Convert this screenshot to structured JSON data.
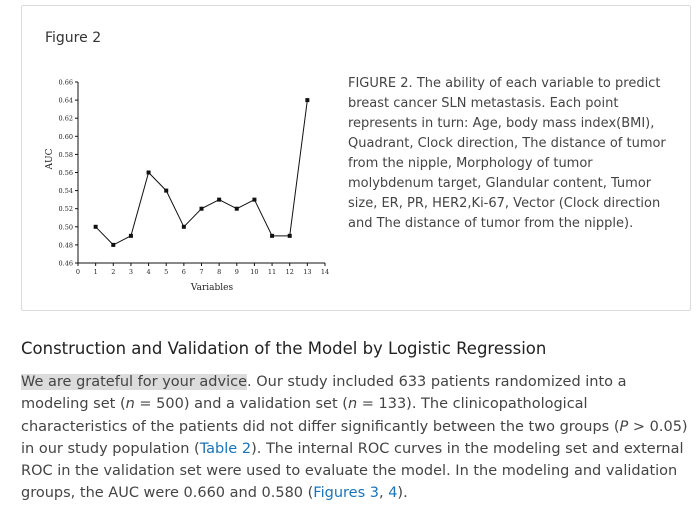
{
  "figure": {
    "label": "Figure 2",
    "caption": "FIGURE 2. The ability of each variable to predict breast cancer SLN metastasis. Each point represents in turn: Age, body mass index(BMI), Quadrant, Clock direction, The distance of tumor from the nipple, Morphology of tumor molybdenum target, Glandular content, Tumor size, ER, PR, HER2,Ki-67, Vector (Clock direction and The distance of tumor from the nipple)."
  },
  "chart_data": {
    "type": "line",
    "xlabel": "Variables",
    "ylabel": "AUC",
    "xlim": [
      0,
      14
    ],
    "ylim": [
      0.46,
      0.66
    ],
    "x_ticks": [
      "0",
      "1",
      "2",
      "3",
      "4",
      "5",
      "6",
      "7",
      "8",
      "9",
      "10",
      "11",
      "12",
      "13",
      "14"
    ],
    "y_ticks": [
      "0.46",
      "0.48",
      "0.50",
      "0.52",
      "0.54",
      "0.56",
      "0.58",
      "0.60",
      "0.62",
      "0.64",
      "0.66"
    ],
    "x": [
      1,
      2,
      3,
      4,
      5,
      6,
      7,
      8,
      9,
      10,
      11,
      12,
      13
    ],
    "y": [
      0.5,
      0.48,
      0.49,
      0.56,
      0.54,
      0.5,
      0.52,
      0.53,
      0.52,
      0.53,
      0.49,
      0.49,
      0.64
    ],
    "marker": "square",
    "grid": false
  },
  "section": {
    "heading": "Construction and Validation of the Model by Logistic Regression"
  },
  "paragraph": {
    "highlighted": "We are grateful for your advice",
    "t1": ". Our study included 633 patients randomized into a modeling set (",
    "n1": "n",
    "t2": " = 500) and a validation set (",
    "n2": "n",
    "t3": " = 133). The clinicopathological characteristics of the patients did not differ significantly between the two groups (",
    "p": "P",
    "t4": " > 0.05) in our study population (",
    "table_link": "Table 2",
    "t5": "). The internal ROC curves in the modeling set and external ROC in the validation set were used to evaluate the model. In the modeling and validation groups, the AUC were 0.660 and 0.580 (",
    "figures_link": "Figures 3",
    "t6": ", ",
    "figure4_link": "4",
    "t7": ")."
  }
}
